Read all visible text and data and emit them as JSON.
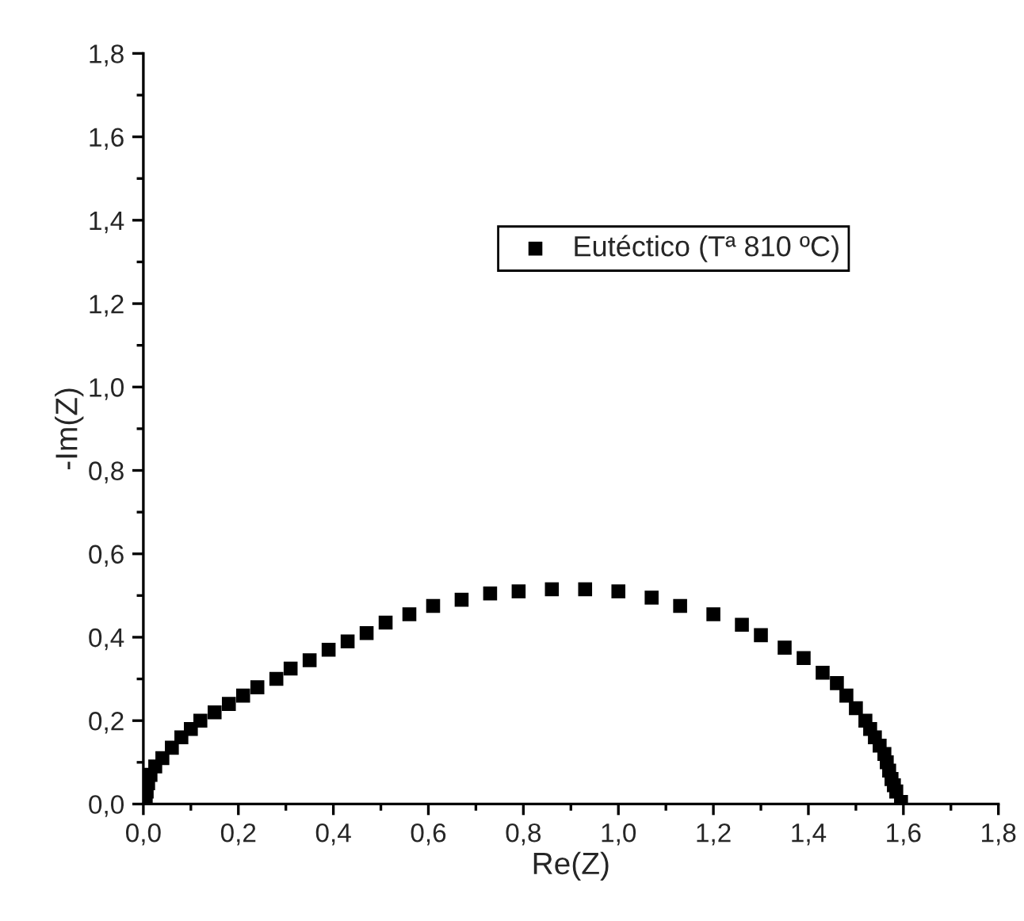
{
  "chart_data": {
    "type": "scatter",
    "xlabel": "Re(Z)",
    "ylabel": "-Im(Z)",
    "x": [
      0.005,
      0.007,
      0.01,
      0.015,
      0.025,
      0.04,
      0.06,
      0.08,
      0.1,
      0.12,
      0.15,
      0.18,
      0.21,
      0.24,
      0.28,
      0.31,
      0.35,
      0.39,
      0.43,
      0.47,
      0.51,
      0.56,
      0.61,
      0.67,
      0.73,
      0.79,
      0.86,
      0.93,
      1.0,
      1.07,
      1.13,
      1.2,
      1.26,
      1.3,
      1.35,
      1.39,
      1.43,
      1.46,
      1.48,
      1.5,
      1.52,
      1.53,
      1.54,
      1.55,
      1.56,
      1.565,
      1.57,
      1.575,
      1.58,
      1.585,
      1.59,
      1.595
    ],
    "series": [
      {
        "name": "Eutéctico (Tª 810 ºC)",
        "color": "#000000",
        "values": [
          0.01,
          0.03,
          0.05,
          0.07,
          0.09,
          0.11,
          0.135,
          0.16,
          0.18,
          0.2,
          0.22,
          0.24,
          0.26,
          0.28,
          0.3,
          0.325,
          0.345,
          0.37,
          0.39,
          0.41,
          0.435,
          0.455,
          0.475,
          0.49,
          0.505,
          0.51,
          0.515,
          0.515,
          0.51,
          0.495,
          0.475,
          0.455,
          0.43,
          0.405,
          0.375,
          0.35,
          0.315,
          0.29,
          0.26,
          0.23,
          0.2,
          0.18,
          0.16,
          0.14,
          0.12,
          0.1,
          0.08,
          0.06,
          0.045,
          0.03,
          null,
          0.005
        ]
      }
    ],
    "xlim": [
      0,
      1.8
    ],
    "ylim": [
      0,
      1.8
    ],
    "xticks": [
      {
        "value": 0,
        "label": "0,0"
      },
      {
        "value": 0.2,
        "label": "0,2"
      },
      {
        "value": 0.4,
        "label": "0,4"
      },
      {
        "value": 0.6,
        "label": "0,6"
      },
      {
        "value": 0.8,
        "label": "0,8"
      },
      {
        "value": 1.0,
        "label": "1,0"
      },
      {
        "value": 1.2,
        "label": "1,2"
      },
      {
        "value": 1.4,
        "label": "1,4"
      },
      {
        "value": 1.6,
        "label": "1,6"
      },
      {
        "value": 1.8,
        "label": "1,8"
      }
    ],
    "yticks": [
      {
        "value": 0,
        "label": "0,0"
      },
      {
        "value": 0.2,
        "label": "0,2"
      },
      {
        "value": 0.4,
        "label": "0,4"
      },
      {
        "value": 0.6,
        "label": "0,6"
      },
      {
        "value": 0.8,
        "label": "0,8"
      },
      {
        "value": 1.0,
        "label": "1,0"
      },
      {
        "value": 1.2,
        "label": "1,2"
      },
      {
        "value": 1.4,
        "label": "1,4"
      },
      {
        "value": 1.6,
        "label": "1,6"
      },
      {
        "value": 1.8,
        "label": "1,8"
      }
    ],
    "marker": "square",
    "legend": "top",
    "grid": false
  }
}
